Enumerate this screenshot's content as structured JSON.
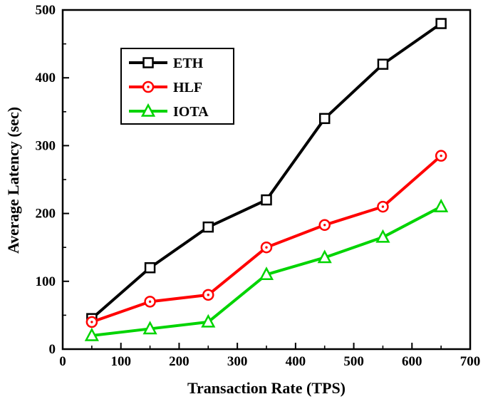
{
  "chart_data": {
    "type": "line",
    "title": "",
    "xlabel": "Transaction Rate (TPS)",
    "ylabel": "Average Latency (sec)",
    "xlim": [
      0,
      700
    ],
    "ylim": [
      0,
      500
    ],
    "xticks": [
      0,
      100,
      200,
      300,
      400,
      500,
      600,
      700
    ],
    "yticks": [
      0,
      100,
      200,
      300,
      400,
      500
    ],
    "grid": false,
    "legend_position": "upper-left",
    "x": [
      50,
      150,
      250,
      350,
      450,
      550,
      650
    ],
    "series": [
      {
        "name": "ETH",
        "color": "#000000",
        "marker": "square",
        "values": [
          45,
          120,
          180,
          220,
          340,
          420,
          480
        ]
      },
      {
        "name": "HLF",
        "color": "#ff0000",
        "marker": "circle-dot",
        "values": [
          40,
          70,
          80,
          150,
          183,
          210,
          285
        ]
      },
      {
        "name": "IOTA",
        "color": "#00d400",
        "marker": "triangle",
        "values": [
          20,
          30,
          40,
          110,
          135,
          165,
          210
        ]
      }
    ]
  }
}
